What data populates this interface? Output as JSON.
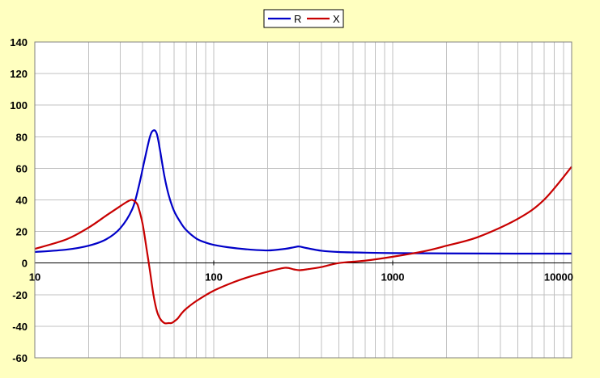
{
  "chart_data": {
    "type": "line",
    "title": "",
    "xlabel": "",
    "ylabel": "",
    "xscale": "log",
    "xlim": [
      10,
      10000
    ],
    "ylim": [
      -60,
      140
    ],
    "x_ticks": [
      "10",
      "100",
      "1000",
      "10000"
    ],
    "y_ticks": [
      "140",
      "120",
      "100",
      "80",
      "60",
      "40",
      "20",
      "0",
      "-20",
      "-40",
      "-60"
    ],
    "grid": true,
    "legend_position": "top-center",
    "colors": {
      "background": "#ffffc0",
      "plot_area": "#ffffff",
      "grid": "#c0c0c0",
      "R": "#0000c8",
      "X": "#c80000"
    },
    "series": [
      {
        "name": "R",
        "x": [
          10,
          15,
          20,
          25,
          30,
          35,
          38,
          41,
          44,
          46,
          48,
          50,
          53,
          56,
          60,
          65,
          70,
          80,
          90,
          100,
          120,
          150,
          200,
          250,
          280,
          300,
          330,
          400,
          500,
          700,
          1000,
          2000,
          5000,
          10000
        ],
        "values": [
          7,
          8.5,
          11,
          15,
          22,
          34,
          48,
          65,
          80,
          84,
          82,
          72,
          55,
          43,
          33,
          26,
          21,
          15.5,
          13,
          11.5,
          10,
          8.8,
          8,
          9,
          10,
          10.5,
          9.5,
          7.8,
          7,
          6.6,
          6.3,
          6.1,
          6,
          6
        ]
      },
      {
        "name": "X",
        "x": [
          10,
          15,
          20,
          25,
          30,
          33,
          35,
          37,
          38,
          40,
          42,
          44,
          46,
          48,
          50,
          53,
          56,
          58,
          60,
          63,
          66,
          70,
          80,
          100,
          130,
          160,
          200,
          250,
          280,
          300,
          330,
          400,
          500,
          700,
          1000,
          1500,
          2000,
          3000,
          5000,
          7000,
          10000
        ],
        "values": [
          9,
          15,
          22.5,
          30,
          36,
          39,
          40,
          38,
          35,
          25,
          10,
          -5,
          -20,
          -30,
          -35,
          -38,
          -38,
          -38,
          -37,
          -35,
          -32,
          -29,
          -24,
          -17.5,
          -12,
          -8.5,
          -5.5,
          -3,
          -4,
          -4.5,
          -4,
          -2.5,
          0,
          1.5,
          4,
          7.5,
          11,
          16.5,
          28,
          40,
          61
        ]
      }
    ]
  }
}
